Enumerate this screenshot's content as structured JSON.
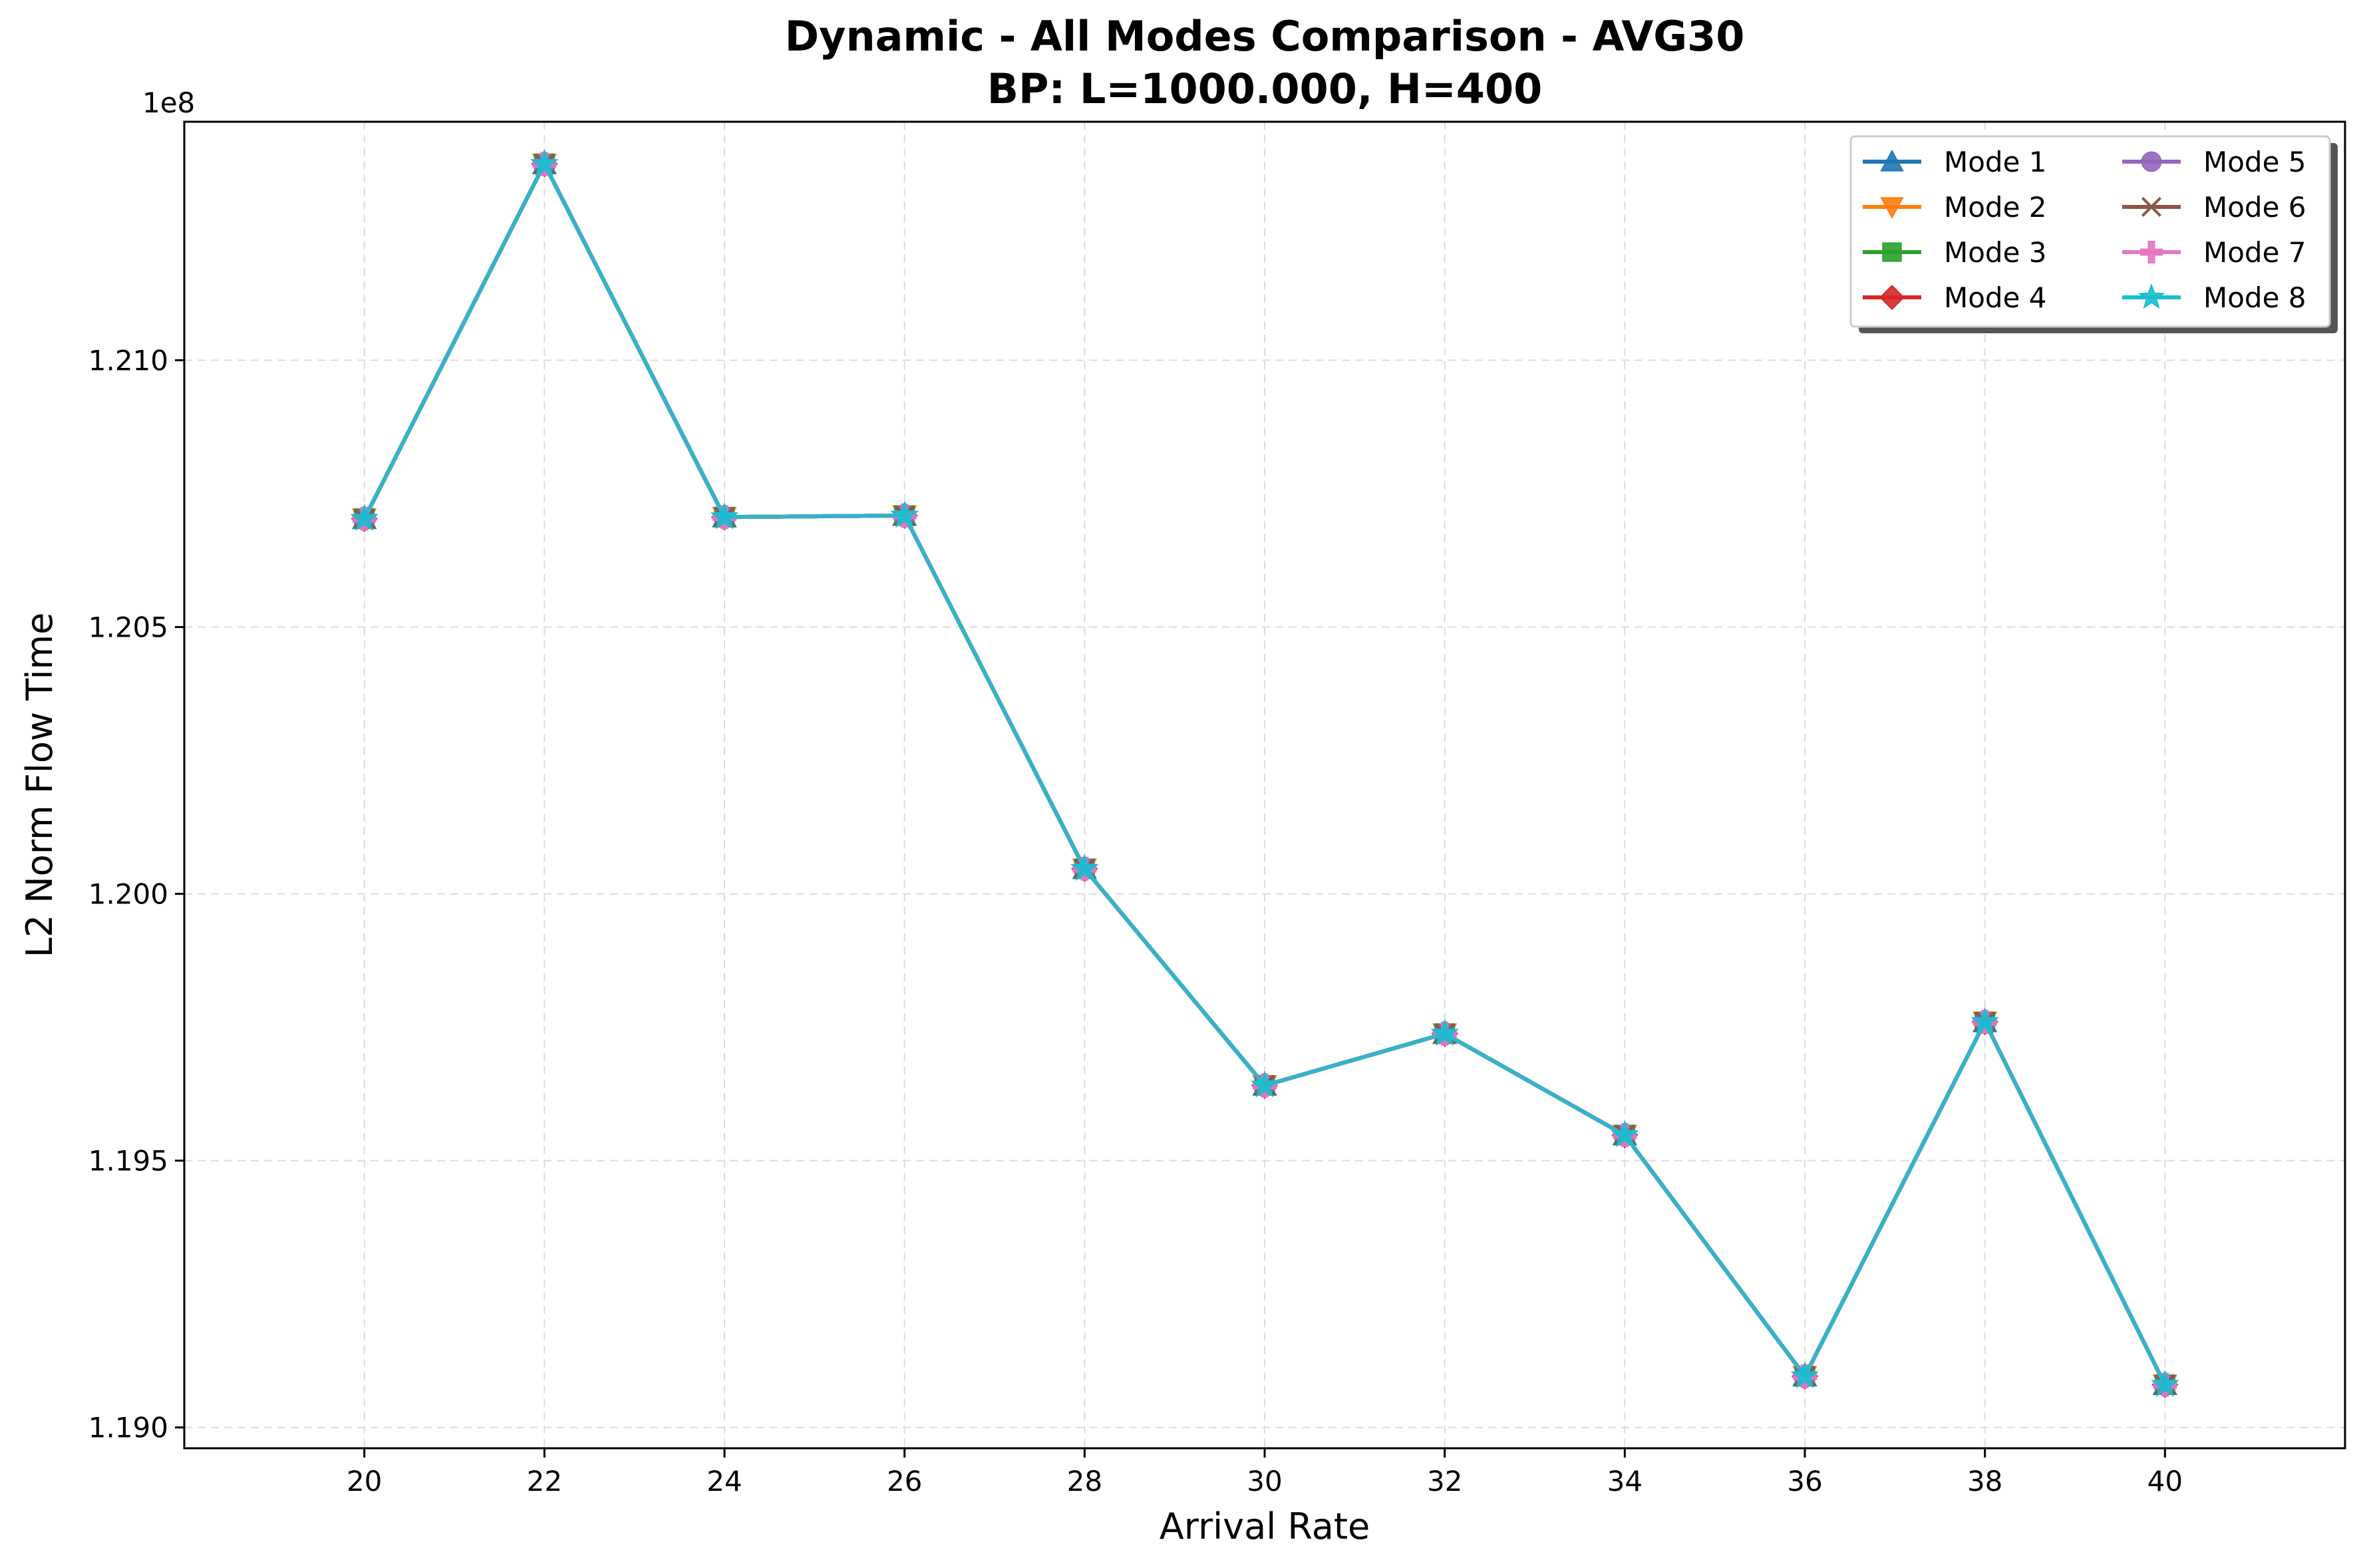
{
  "chart_data": {
    "type": "line",
    "title_line1": "Dynamic - All Modes Comparison - AVG30",
    "title_line2": "BP: L=1000.000, H=400",
    "xlabel": "Arrival Rate",
    "ylabel": "L2 Norm Flow Time",
    "y_offset_label": "1e8",
    "x": [
      20,
      22,
      24,
      26,
      28,
      30,
      32,
      34,
      36,
      38,
      40
    ],
    "x_tick_labels": [
      "20",
      "22",
      "24",
      "26",
      "28",
      "30",
      "32",
      "34",
      "36",
      "38",
      "40"
    ],
    "xlim": [
      18,
      42
    ],
    "ylim": [
      1.18961,
      1.21447
    ],
    "y_ticks": [
      1.19,
      1.195,
      1.2,
      1.205,
      1.21
    ],
    "y_tick_labels": [
      "1.190",
      "1.195",
      "1.200",
      "1.205",
      "1.210"
    ],
    "grid": true,
    "legend_position": "top-right",
    "series": [
      {
        "name": "Mode 1",
        "color": "#1f77b4",
        "marker": "triangle-up",
        "values": [
          1.20703,
          1.21368,
          1.20706,
          1.20709,
          1.20047,
          1.19641,
          1.19738,
          1.19548,
          1.19096,
          1.1976,
          1.1908
        ]
      },
      {
        "name": "Mode 2",
        "color": "#ff7f0e",
        "marker": "triangle-down",
        "values": [
          1.20703,
          1.21368,
          1.20706,
          1.20709,
          1.20047,
          1.19641,
          1.19738,
          1.19548,
          1.19096,
          1.1976,
          1.1908
        ]
      },
      {
        "name": "Mode 3",
        "color": "#2ca02c",
        "marker": "square",
        "values": [
          1.20703,
          1.21368,
          1.20706,
          1.20709,
          1.20047,
          1.19641,
          1.19738,
          1.19548,
          1.19096,
          1.1976,
          1.1908
        ]
      },
      {
        "name": "Mode 4",
        "color": "#d62728",
        "marker": "diamond",
        "values": [
          1.20703,
          1.21368,
          1.20706,
          1.20709,
          1.20047,
          1.19641,
          1.19738,
          1.19548,
          1.19096,
          1.1976,
          1.1908
        ]
      },
      {
        "name": "Mode 5",
        "color": "#9467bd",
        "marker": "circle",
        "values": [
          1.20703,
          1.21368,
          1.20706,
          1.20709,
          1.20047,
          1.19641,
          1.19738,
          1.19548,
          1.19096,
          1.1976,
          1.1908
        ]
      },
      {
        "name": "Mode 6",
        "color": "#8c564b",
        "marker": "x",
        "values": [
          1.20703,
          1.21368,
          1.20706,
          1.20709,
          1.20047,
          1.19641,
          1.19738,
          1.19548,
          1.19096,
          1.1976,
          1.1908
        ]
      },
      {
        "name": "Mode 7",
        "color": "#e377c2",
        "marker": "plus",
        "values": [
          1.20703,
          1.21368,
          1.20706,
          1.20709,
          1.20047,
          1.19641,
          1.19738,
          1.19548,
          1.19096,
          1.1976,
          1.1908
        ]
      },
      {
        "name": "Mode 8",
        "color": "#17becf",
        "marker": "star",
        "values": [
          1.20703,
          1.21368,
          1.20706,
          1.20709,
          1.20047,
          1.19641,
          1.19738,
          1.19548,
          1.19096,
          1.1976,
          1.1908
        ]
      }
    ]
  }
}
